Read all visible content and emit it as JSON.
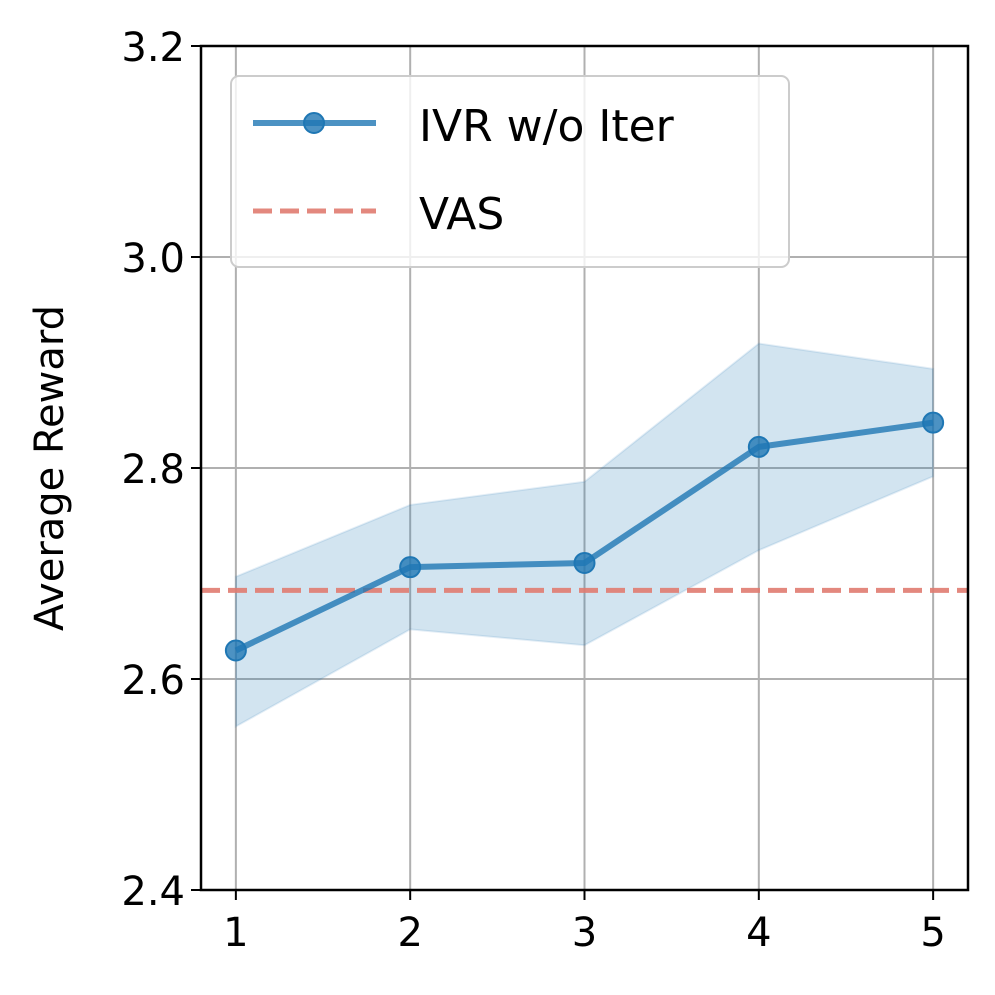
{
  "chart_data": {
    "type": "line",
    "x": [
      1,
      2,
      3,
      4,
      5
    ],
    "xticks": [
      "1",
      "2",
      "3",
      "4",
      "5"
    ],
    "yticks": [
      "2.4",
      "2.6",
      "2.8",
      "3.0",
      "3.2"
    ],
    "ylabel": "Average Reward",
    "xlabel": "",
    "xlim": [
      0.8,
      5.2
    ],
    "ylim": [
      2.4,
      3.2
    ],
    "grid": true,
    "legend_position": "top-left",
    "series": [
      {
        "name": "IVR w/o Iter",
        "values": [
          2.627,
          2.706,
          2.71,
          2.82,
          2.843
        ],
        "band_lower": [
          2.555,
          2.647,
          2.632,
          2.722,
          2.792
        ],
        "band_upper": [
          2.697,
          2.765,
          2.787,
          2.918,
          2.894
        ],
        "color": "#1f77b4",
        "style": "solid-with-markers"
      }
    ],
    "reference_lines": [
      {
        "name": "VAS",
        "y": 2.684,
        "color": "#e07b70",
        "style": "dashed"
      }
    ]
  }
}
